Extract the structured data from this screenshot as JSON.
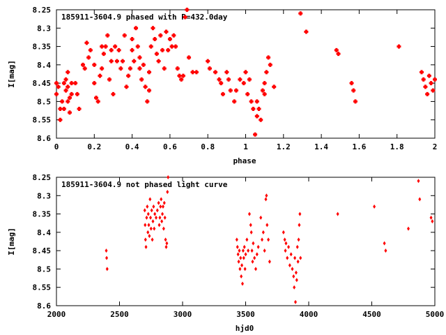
{
  "chart_data": [
    {
      "type": "scatter",
      "title": "185911-3604.9 phased with P=432.0day",
      "xlabel": "phase",
      "ylabel": "I[mag]",
      "xlim": [
        0,
        2
      ],
      "ylim": [
        8.6,
        8.25
      ],
      "y_inverted": true,
      "grid": false,
      "marker": "cross",
      "color": "#ff0000",
      "xticks": [
        "0",
        "0.2",
        "0.4",
        "0.6",
        "0.8",
        "1",
        "1.2",
        "1.4",
        "1.6",
        "1.8",
        "2"
      ],
      "yticks": [
        "8.25",
        "8.3",
        "8.35",
        "8.4",
        "8.45",
        "8.5",
        "8.55",
        "8.6"
      ],
      "points": [
        [
          0.0,
          8.45
        ],
        [
          0.0,
          8.48
        ],
        [
          0.01,
          8.46
        ],
        [
          0.02,
          8.55
        ],
        [
          0.02,
          8.52
        ],
        [
          0.03,
          8.5
        ],
        [
          0.04,
          8.45
        ],
        [
          0.04,
          8.52
        ],
        [
          0.05,
          8.47
        ],
        [
          0.05,
          8.44
        ],
        [
          0.06,
          8.5
        ],
        [
          0.06,
          8.42
        ],
        [
          0.06,
          8.46
        ],
        [
          0.07,
          8.49
        ],
        [
          0.07,
          8.53
        ],
        [
          0.08,
          8.48
        ],
        [
          0.08,
          8.45
        ],
        [
          0.1,
          8.45
        ],
        [
          0.11,
          8.48
        ],
        [
          0.12,
          8.52
        ],
        [
          0.14,
          8.4
        ],
        [
          0.15,
          8.41
        ],
        [
          0.16,
          8.34
        ],
        [
          0.17,
          8.38
        ],
        [
          0.18,
          8.36
        ],
        [
          0.2,
          8.4
        ],
        [
          0.2,
          8.45
        ],
        [
          0.21,
          8.49
        ],
        [
          0.22,
          8.5
        ],
        [
          0.23,
          8.43
        ],
        [
          0.24,
          8.35
        ],
        [
          0.24,
          8.41
        ],
        [
          0.25,
          8.37
        ],
        [
          0.26,
          8.35
        ],
        [
          0.27,
          8.32
        ],
        [
          0.28,
          8.44
        ],
        [
          0.29,
          8.39
        ],
        [
          0.29,
          8.36
        ],
        [
          0.3,
          8.48
        ],
        [
          0.31,
          8.35
        ],
        [
          0.32,
          8.39
        ],
        [
          0.33,
          8.36
        ],
        [
          0.34,
          8.41
        ],
        [
          0.35,
          8.39
        ],
        [
          0.36,
          8.32
        ],
        [
          0.37,
          8.46
        ],
        [
          0.38,
          8.43
        ],
        [
          0.39,
          8.41
        ],
        [
          0.4,
          8.33
        ],
        [
          0.4,
          8.36
        ],
        [
          0.41,
          8.39
        ],
        [
          0.42,
          8.3
        ],
        [
          0.43,
          8.35
        ],
        [
          0.44,
          8.38
        ],
        [
          0.44,
          8.41
        ],
        [
          0.45,
          8.44
        ],
        [
          0.46,
          8.4
        ],
        [
          0.47,
          8.46
        ],
        [
          0.48,
          8.5
        ],
        [
          0.49,
          8.47
        ],
        [
          0.49,
          8.42
        ],
        [
          0.5,
          8.35
        ],
        [
          0.51,
          8.3
        ],
        [
          0.52,
          8.33
        ],
        [
          0.53,
          8.37
        ],
        [
          0.54,
          8.39
        ],
        [
          0.55,
          8.32
        ],
        [
          0.56,
          8.36
        ],
        [
          0.57,
          8.41
        ],
        [
          0.58,
          8.31
        ],
        [
          0.59,
          8.36
        ],
        [
          0.6,
          8.33
        ],
        [
          0.61,
          8.35
        ],
        [
          0.62,
          8.32
        ],
        [
          0.63,
          8.35
        ],
        [
          0.64,
          8.41
        ],
        [
          0.65,
          8.43
        ],
        [
          0.66,
          8.44
        ],
        [
          0.67,
          8.43
        ],
        [
          0.68,
          8.27
        ],
        [
          0.69,
          8.25
        ],
        [
          0.7,
          8.38
        ],
        [
          0.72,
          8.42
        ],
        [
          0.74,
          8.42
        ],
        [
          0.8,
          8.39
        ],
        [
          0.81,
          8.41
        ],
        [
          0.84,
          8.42
        ],
        [
          0.86,
          8.44
        ],
        [
          0.87,
          8.45
        ],
        [
          0.88,
          8.48
        ],
        [
          0.9,
          8.42
        ],
        [
          0.91,
          8.44
        ],
        [
          0.92,
          8.47
        ],
        [
          0.94,
          8.5
        ],
        [
          0.95,
          8.47
        ],
        [
          0.97,
          8.44
        ],
        [
          0.99,
          8.45
        ],
        [
          1.0,
          8.42
        ],
        [
          1.01,
          8.48
        ],
        [
          1.02,
          8.44
        ],
        [
          1.03,
          8.5
        ],
        [
          1.04,
          8.52
        ],
        [
          1.05,
          8.59
        ],
        [
          1.06,
          8.54
        ],
        [
          1.06,
          8.5
        ],
        [
          1.07,
          8.52
        ],
        [
          1.08,
          8.55
        ],
        [
          1.09,
          8.47
        ],
        [
          1.1,
          8.48
        ],
        [
          1.1,
          8.45
        ],
        [
          1.11,
          8.42
        ],
        [
          1.12,
          8.38
        ],
        [
          1.13,
          8.4
        ],
        [
          1.15,
          8.46
        ],
        [
          1.29,
          8.26
        ],
        [
          1.32,
          8.31
        ],
        [
          1.48,
          8.36
        ],
        [
          1.49,
          8.37
        ],
        [
          1.56,
          8.45
        ],
        [
          1.57,
          8.47
        ],
        [
          1.58,
          8.5
        ],
        [
          1.81,
          8.35
        ],
        [
          1.93,
          8.42
        ],
        [
          1.94,
          8.44
        ],
        [
          1.95,
          8.46
        ],
        [
          1.96,
          8.48
        ],
        [
          1.97,
          8.43
        ],
        [
          1.98,
          8.45
        ],
        [
          1.99,
          8.47
        ],
        [
          2.0,
          8.44
        ]
      ]
    },
    {
      "type": "scatter",
      "title": "185911-3604.9 not phased light curve",
      "xlabel": "hjd0",
      "ylabel": "I[mag]",
      "xlim": [
        2000,
        5000
      ],
      "ylim": [
        8.6,
        8.25
      ],
      "y_inverted": true,
      "grid": false,
      "marker": "diamond",
      "color": "#ff0000",
      "xticks": [
        "2000",
        "2500",
        "3000",
        "3500",
        "4000",
        "4500",
        "5000"
      ],
      "yticks": [
        "8.25",
        "8.3",
        "8.35",
        "8.4",
        "8.45",
        "8.5",
        "8.55",
        "8.6"
      ],
      "points": [
        [
          2395,
          8.45
        ],
        [
          2398,
          8.47
        ],
        [
          2402,
          8.5
        ],
        [
          2700,
          8.34
        ],
        [
          2703,
          8.38
        ],
        [
          2706,
          8.42
        ],
        [
          2710,
          8.44
        ],
        [
          2715,
          8.36
        ],
        [
          2720,
          8.33
        ],
        [
          2725,
          8.4
        ],
        [
          2728,
          8.35
        ],
        [
          2732,
          8.38
        ],
        [
          2737,
          8.41
        ],
        [
          2742,
          8.31
        ],
        [
          2746,
          8.36
        ],
        [
          2750,
          8.39
        ],
        [
          2755,
          8.34
        ],
        [
          2760,
          8.42
        ],
        [
          2765,
          8.37
        ],
        [
          2770,
          8.33
        ],
        [
          2775,
          8.39
        ],
        [
          2780,
          8.35
        ],
        [
          2790,
          8.36
        ],
        [
          2800,
          8.34
        ],
        [
          2810,
          8.32
        ],
        [
          2815,
          8.38
        ],
        [
          2820,
          8.36
        ],
        [
          2825,
          8.33
        ],
        [
          2830,
          8.31
        ],
        [
          2835,
          8.37
        ],
        [
          2840,
          8.35
        ],
        [
          2845,
          8.33
        ],
        [
          2850,
          8.39
        ],
        [
          2855,
          8.32
        ],
        [
          2860,
          8.36
        ],
        [
          2865,
          8.42
        ],
        [
          2870,
          8.44
        ],
        [
          2875,
          8.43
        ],
        [
          2880,
          8.29
        ],
        [
          2885,
          8.25
        ],
        [
          3430,
          8.42
        ],
        [
          3435,
          8.44
        ],
        [
          3440,
          8.46
        ],
        [
          3445,
          8.48
        ],
        [
          3450,
          8.45
        ],
        [
          3455,
          8.5
        ],
        [
          3460,
          8.47
        ],
        [
          3465,
          8.52
        ],
        [
          3470,
          8.49
        ],
        [
          3475,
          8.54
        ],
        [
          3480,
          8.45
        ],
        [
          3485,
          8.47
        ],
        [
          3490,
          8.44
        ],
        [
          3495,
          8.5
        ],
        [
          3500,
          8.46
        ],
        [
          3510,
          8.42
        ],
        [
          3520,
          8.45
        ],
        [
          3530,
          8.35
        ],
        [
          3540,
          8.38
        ],
        [
          3545,
          8.4
        ],
        [
          3550,
          8.45
        ],
        [
          3555,
          8.48
        ],
        [
          3560,
          8.43
        ],
        [
          3570,
          8.47
        ],
        [
          3580,
          8.5
        ],
        [
          3590,
          8.46
        ],
        [
          3600,
          8.44
        ],
        [
          3620,
          8.36
        ],
        [
          3630,
          8.42
        ],
        [
          3640,
          8.4
        ],
        [
          3650,
          8.45
        ],
        [
          3660,
          8.31
        ],
        [
          3665,
          8.3
        ],
        [
          3670,
          8.38
        ],
        [
          3680,
          8.42
        ],
        [
          3690,
          8.48
        ],
        [
          3800,
          8.4
        ],
        [
          3810,
          8.42
        ],
        [
          3815,
          8.45
        ],
        [
          3820,
          8.43
        ],
        [
          3830,
          8.47
        ],
        [
          3840,
          8.44
        ],
        [
          3850,
          8.49
        ],
        [
          3860,
          8.46
        ],
        [
          3870,
          8.5
        ],
        [
          3880,
          8.52
        ],
        [
          3885,
          8.55
        ],
        [
          3890,
          8.47
        ],
        [
          3895,
          8.59
        ],
        [
          3900,
          8.51
        ],
        [
          3905,
          8.53
        ],
        [
          3910,
          8.44
        ],
        [
          3915,
          8.48
        ],
        [
          3920,
          8.42
        ],
        [
          3925,
          8.38
        ],
        [
          3930,
          8.35
        ],
        [
          3935,
          8.47
        ],
        [
          4230,
          8.35
        ],
        [
          4520,
          8.33
        ],
        [
          4600,
          8.43
        ],
        [
          4610,
          8.45
        ],
        [
          4790,
          8.39
        ],
        [
          4870,
          8.26
        ],
        [
          4880,
          8.31
        ],
        [
          4970,
          8.36
        ],
        [
          4980,
          8.37
        ]
      ]
    }
  ]
}
